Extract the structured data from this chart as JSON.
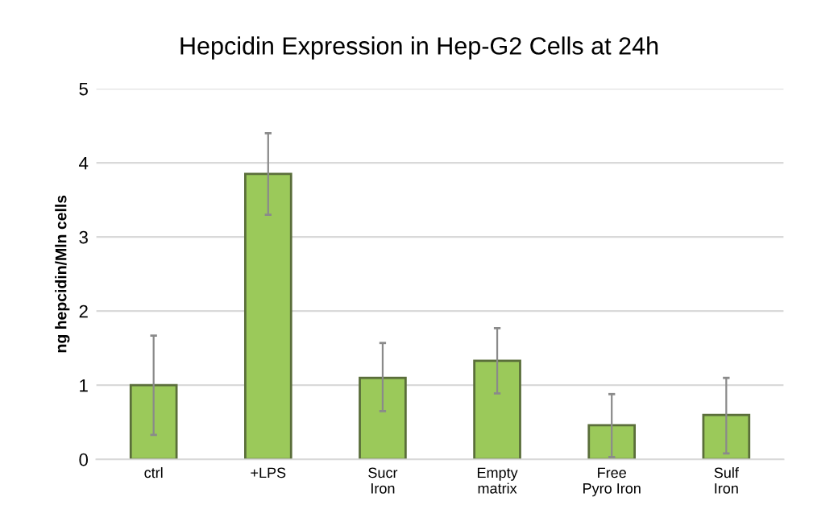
{
  "chart_data": {
    "type": "bar",
    "title": "Hepcidin Expression in Hep-G2 Cells at 24h",
    "ylabel": "ng hepcidin/Mln cells",
    "categories": [
      "ctrl",
      "+LPS",
      "Sucr\nIron",
      "Empty\nmatrix",
      "Free\nPyro Iron",
      "Sulf\nIron"
    ],
    "values": [
      1.0,
      3.85,
      1.1,
      1.33,
      0.46,
      0.6
    ],
    "errors": [
      [
        0.33,
        1.67
      ],
      [
        3.3,
        4.4
      ],
      [
        0.65,
        1.57
      ],
      [
        0.89,
        1.77
      ],
      [
        0.03,
        0.88
      ],
      [
        0.08,
        1.1
      ]
    ],
    "color": "#9bc95a",
    "ylim": [
      0,
      5
    ],
    "yticks": [
      0,
      1,
      2,
      3,
      4,
      5
    ],
    "grid": "y"
  }
}
